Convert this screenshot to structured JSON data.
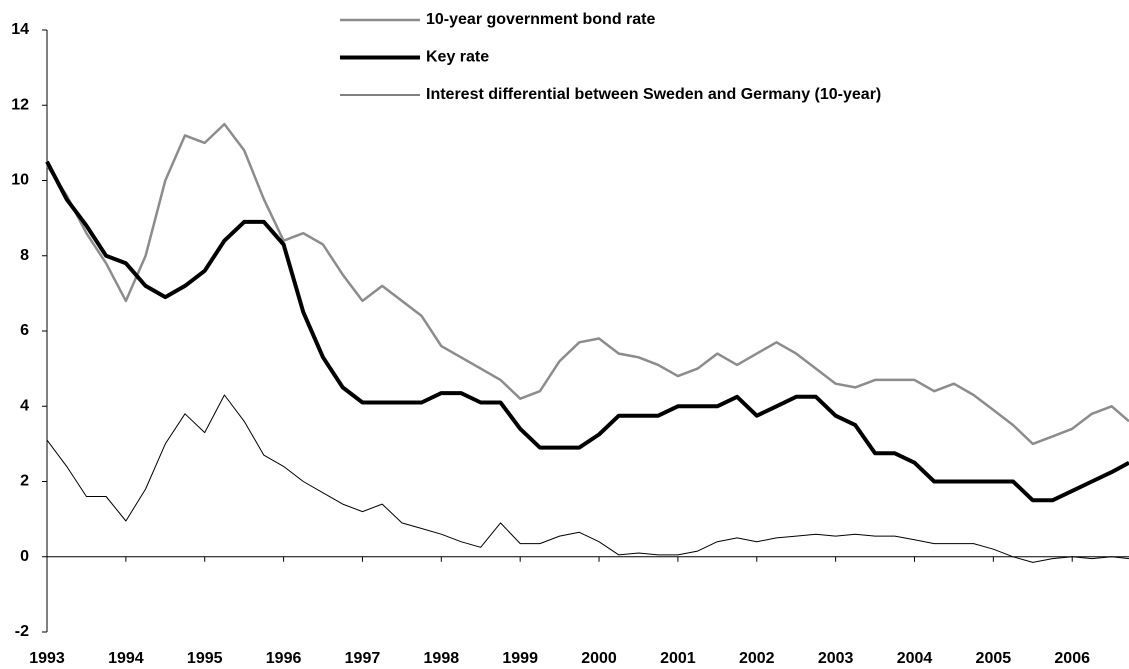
{
  "chart_data": {
    "type": "line",
    "x": [
      1993,
      1993.25,
      1993.5,
      1993.75,
      1994,
      1994.25,
      1994.5,
      1994.75,
      1995,
      1995.25,
      1995.5,
      1995.75,
      1996,
      1996.25,
      1996.5,
      1996.75,
      1997,
      1997.25,
      1997.5,
      1997.75,
      1998,
      1998.25,
      1998.5,
      1998.75,
      1999,
      1999.25,
      1999.5,
      1999.75,
      2000,
      2000.25,
      2000.5,
      2000.75,
      2001,
      2001.25,
      2001.5,
      2001.75,
      2002,
      2002.25,
      2002.5,
      2002.75,
      2003,
      2003.25,
      2003.5,
      2003.75,
      2004,
      2004.25,
      2004.5,
      2004.75,
      2005,
      2005.25,
      2005.5,
      2005.75,
      2006,
      2006.25,
      2006.5,
      2006.72
    ],
    "series": [
      {
        "name": "10-year government bond rate",
        "color": "#8c8c8c",
        "values": [
          10.4,
          9.6,
          8.6,
          7.8,
          6.8,
          8.0,
          10.0,
          11.2,
          11.0,
          11.5,
          10.8,
          9.5,
          8.4,
          8.6,
          8.3,
          7.5,
          6.8,
          7.2,
          6.8,
          6.4,
          5.6,
          5.3,
          5.0,
          4.7,
          4.2,
          4.4,
          5.2,
          5.7,
          5.8,
          5.4,
          5.3,
          5.1,
          4.8,
          5.0,
          5.4,
          5.1,
          5.4,
          5.7,
          5.4,
          5.0,
          4.6,
          4.5,
          4.7,
          4.7,
          4.7,
          4.4,
          4.6,
          4.3,
          3.9,
          3.5,
          3.0,
          3.2,
          3.4,
          3.8,
          4.0,
          3.6
        ]
      },
      {
        "name": "Key rate",
        "color": "#000000",
        "values": [
          10.5,
          9.5,
          8.8,
          8.0,
          7.8,
          7.2,
          6.9,
          7.2,
          7.6,
          8.4,
          8.9,
          8.9,
          8.3,
          6.5,
          5.3,
          4.5,
          4.1,
          4.1,
          4.1,
          4.1,
          4.35,
          4.35,
          4.1,
          4.1,
          3.4,
          2.9,
          2.9,
          2.9,
          3.25,
          3.75,
          3.75,
          3.75,
          4.0,
          4.0,
          4.0,
          4.25,
          3.75,
          4.0,
          4.25,
          4.25,
          3.75,
          3.5,
          2.75,
          2.75,
          2.5,
          2.0,
          2.0,
          2.0,
          2.0,
          2.0,
          1.5,
          1.5,
          1.75,
          2.0,
          2.25,
          2.5
        ]
      },
      {
        "name": "Interest differential between Sweden and Germany (10-year)",
        "color": "#000000",
        "values": [
          3.1,
          2.4,
          1.6,
          1.6,
          0.95,
          1.8,
          3.0,
          3.8,
          3.3,
          4.3,
          3.6,
          2.7,
          2.4,
          2.0,
          1.7,
          1.4,
          1.2,
          1.4,
          0.9,
          0.75,
          0.6,
          0.4,
          0.25,
          0.9,
          0.35,
          0.35,
          0.55,
          0.65,
          0.4,
          0.05,
          0.1,
          0.05,
          0.05,
          0.15,
          0.4,
          0.5,
          0.4,
          0.5,
          0.55,
          0.6,
          0.55,
          0.6,
          0.55,
          0.55,
          0.45,
          0.35,
          0.35,
          0.35,
          0.2,
          0.0,
          -0.15,
          -0.05,
          0.0,
          -0.05,
          0.0,
          -0.05
        ]
      }
    ],
    "xlim": [
      1993,
      2006.72
    ],
    "xticks": [
      1993,
      1994,
      1995,
      1996,
      1997,
      1998,
      1999,
      2000,
      2001,
      2002,
      2003,
      2004,
      2005,
      2006
    ],
    "ylim": [
      -2,
      14
    ],
    "yticks": [
      -2,
      0,
      2,
      4,
      6,
      8,
      10,
      12,
      14
    ],
    "legend": "top"
  }
}
